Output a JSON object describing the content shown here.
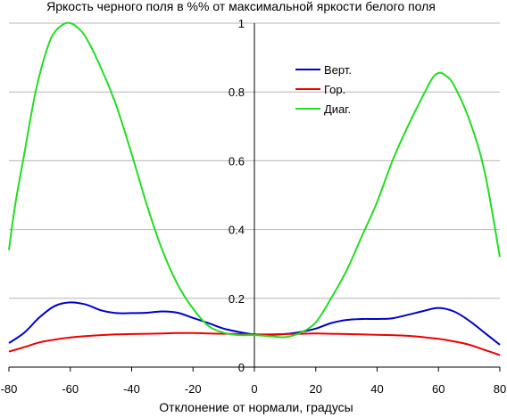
{
  "chart_data": {
    "type": "line",
    "title": "Яркость черного поля в %% от максимальной яркости белого поля",
    "xlabel": "Отклонение от нормали, градусы",
    "ylabel": "",
    "xlim": [
      -80,
      80
    ],
    "ylim": [
      0,
      1
    ],
    "x_ticks": [
      "-80",
      "-60",
      "-40",
      "-20",
      "0",
      "20",
      "40",
      "60",
      "80"
    ],
    "y_ticks": [
      "0",
      "0.2",
      "0.4",
      "0.6",
      "0.8",
      "1"
    ],
    "grid": "horizontal",
    "legend_position": "top-right",
    "series": [
      {
        "name": "Верт.",
        "color": "#0000cc",
        "points": [
          [
            -80,
            0.07
          ],
          [
            -75,
            0.1
          ],
          [
            -70,
            0.145
          ],
          [
            -65,
            0.178
          ],
          [
            -60,
            0.188
          ],
          [
            -55,
            0.182
          ],
          [
            -50,
            0.165
          ],
          [
            -45,
            0.157
          ],
          [
            -40,
            0.157
          ],
          [
            -35,
            0.158
          ],
          [
            -30,
            0.162
          ],
          [
            -25,
            0.158
          ],
          [
            -20,
            0.143
          ],
          [
            -15,
            0.128
          ],
          [
            -10,
            0.112
          ],
          [
            -5,
            0.102
          ],
          [
            0,
            0.095
          ],
          [
            5,
            0.094
          ],
          [
            10,
            0.096
          ],
          [
            15,
            0.102
          ],
          [
            20,
            0.112
          ],
          [
            25,
            0.128
          ],
          [
            30,
            0.137
          ],
          [
            35,
            0.14
          ],
          [
            40,
            0.14
          ],
          [
            45,
            0.142
          ],
          [
            50,
            0.152
          ],
          [
            55,
            0.163
          ],
          [
            60,
            0.172
          ],
          [
            65,
            0.162
          ],
          [
            70,
            0.135
          ],
          [
            75,
            0.1
          ],
          [
            80,
            0.065
          ]
        ]
      },
      {
        "name": "Гор.",
        "color": "#ee0000",
        "points": [
          [
            -80,
            0.045
          ],
          [
            -75,
            0.058
          ],
          [
            -70,
            0.072
          ],
          [
            -65,
            0.08
          ],
          [
            -60,
            0.086
          ],
          [
            -55,
            0.09
          ],
          [
            -50,
            0.093
          ],
          [
            -45,
            0.095
          ],
          [
            -40,
            0.096
          ],
          [
            -35,
            0.097
          ],
          [
            -30,
            0.098
          ],
          [
            -25,
            0.099
          ],
          [
            -20,
            0.099
          ],
          [
            -15,
            0.098
          ],
          [
            -10,
            0.097
          ],
          [
            -5,
            0.096
          ],
          [
            0,
            0.095
          ],
          [
            5,
            0.095
          ],
          [
            10,
            0.096
          ],
          [
            15,
            0.097
          ],
          [
            20,
            0.098
          ],
          [
            25,
            0.097
          ],
          [
            30,
            0.096
          ],
          [
            35,
            0.095
          ],
          [
            40,
            0.094
          ],
          [
            45,
            0.093
          ],
          [
            50,
            0.091
          ],
          [
            55,
            0.087
          ],
          [
            60,
            0.082
          ],
          [
            65,
            0.075
          ],
          [
            70,
            0.065
          ],
          [
            75,
            0.05
          ],
          [
            80,
            0.035
          ]
        ]
      },
      {
        "name": "Диаг.",
        "color": "#22dd22",
        "points": [
          [
            -80,
            0.34
          ],
          [
            -78,
            0.47
          ],
          [
            -75,
            0.62
          ],
          [
            -72,
            0.77
          ],
          [
            -70,
            0.85
          ],
          [
            -67,
            0.94
          ],
          [
            -65,
            0.975
          ],
          [
            -62,
            0.998
          ],
          [
            -60,
            1.0
          ],
          [
            -58,
            0.99
          ],
          [
            -55,
            0.96
          ],
          [
            -50,
            0.87
          ],
          [
            -45,
            0.76
          ],
          [
            -40,
            0.62
          ],
          [
            -35,
            0.47
          ],
          [
            -30,
            0.34
          ],
          [
            -25,
            0.24
          ],
          [
            -20,
            0.17
          ],
          [
            -15,
            0.12
          ],
          [
            -10,
            0.1
          ],
          [
            -5,
            0.093
          ],
          [
            0,
            0.093
          ],
          [
            5,
            0.09
          ],
          [
            10,
            0.087
          ],
          [
            15,
            0.1
          ],
          [
            20,
            0.13
          ],
          [
            25,
            0.2
          ],
          [
            30,
            0.28
          ],
          [
            35,
            0.38
          ],
          [
            40,
            0.48
          ],
          [
            45,
            0.6
          ],
          [
            50,
            0.7
          ],
          [
            55,
            0.79
          ],
          [
            58,
            0.84
          ],
          [
            60,
            0.855
          ],
          [
            62,
            0.85
          ],
          [
            65,
            0.82
          ],
          [
            70,
            0.72
          ],
          [
            75,
            0.57
          ],
          [
            80,
            0.32
          ]
        ]
      }
    ]
  }
}
